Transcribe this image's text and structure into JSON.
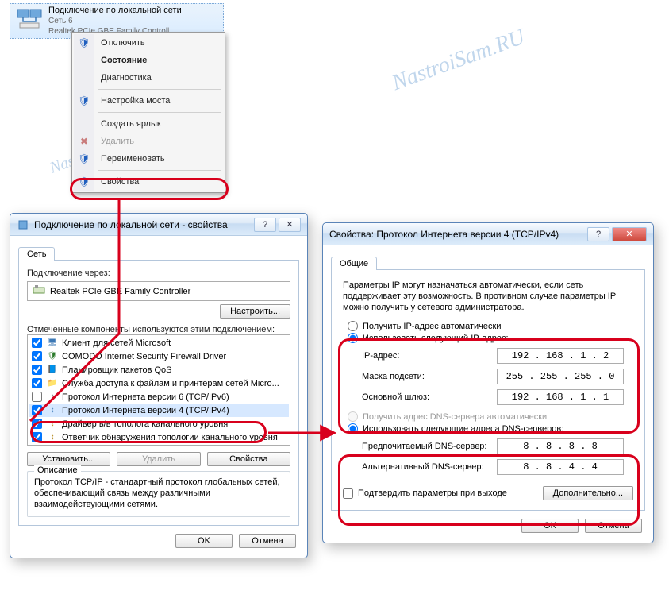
{
  "watermark": {
    "text": "NastroiSam.RU",
    "color": "#b6cfe9",
    "fontsize_large": 28,
    "fontsize_small": 20
  },
  "highlight_color": "#d8001c",
  "net_item": {
    "title": "Подключение по локальной сети",
    "line2": "Сеть 6",
    "line3": "Realtek PCIe GBE Family Controll...",
    "icon_colors": [
      "#6fa8dc",
      "#3b78b5"
    ]
  },
  "ctx_menu": {
    "bg": "#f5f5f5",
    "items": [
      {
        "label": "Отключить",
        "icon": "shield",
        "bold": false
      },
      {
        "label": "Состояние",
        "icon": "",
        "bold": true
      },
      {
        "label": "Диагностика",
        "icon": "",
        "bold": false
      },
      {
        "sep": true
      },
      {
        "label": "Настройка моста",
        "icon": "shield",
        "bold": false
      },
      {
        "sep": true
      },
      {
        "label": "Создать ярлык",
        "icon": "",
        "bold": false
      },
      {
        "label": "Удалить",
        "icon": "del",
        "bold": false,
        "disabled": true
      },
      {
        "label": "Переименовать",
        "icon": "shield",
        "bold": false
      },
      {
        "sep": true
      },
      {
        "label": "Свойства",
        "icon": "shield",
        "bold": false,
        "highlight": true
      }
    ]
  },
  "props_dialog": {
    "title": "Подключение по локальной сети - свойства",
    "tab_label": "Сеть",
    "connect_label": "Подключение через:",
    "adapter": "Realtek PCIe GBE Family Controller",
    "configure_btn": "Настроить...",
    "components_label": "Отмеченные компоненты используются этим подключением:",
    "components": [
      {
        "checked": true,
        "name": "Клиент для сетей Microsoft",
        "ico": "🖥",
        "color": "#3b78b5"
      },
      {
        "checked": true,
        "name": "COMODO Internet Security Firewall Driver",
        "ico": "🛡",
        "color": "#2a7a2a"
      },
      {
        "checked": true,
        "name": "Планировщик пакетов QoS",
        "ico": "📘",
        "color": "#3b78b5"
      },
      {
        "checked": true,
        "name": "Служба доступа к файлам и принтерам сетей Micro...",
        "ico": "📁",
        "color": "#c19a3a"
      },
      {
        "checked": false,
        "name": "Протокол Интернета версии 6 (TCP/IPv6)",
        "ico": "↕",
        "color": "#777"
      },
      {
        "checked": true,
        "name": "Протокол Интернета версии 4 (TCP/IPv4)",
        "ico": "↕",
        "color": "#3b78b5",
        "selected": true,
        "highlight": true
      },
      {
        "checked": true,
        "name": "Драйвер в/в тополога канального уровня",
        "ico": "↕",
        "color": "#aa7a00"
      },
      {
        "checked": true,
        "name": "Ответчик обнаружения топологии канального уровня",
        "ico": "↕",
        "color": "#aa7a00"
      }
    ],
    "install_btn": "Установить...",
    "remove_btn": "Удалить",
    "props_btn": "Свойства",
    "desc_title": "Описание",
    "desc_text": "Протокол TCP/IP - стандартный протокол глобальных сетей, обеспечивающий связь между различными взаимодействующими сетями.",
    "ok_btn": "OK",
    "cancel_btn": "Отмена"
  },
  "ipv4_dialog": {
    "title": "Свойства: Протокол Интернета версии 4 (TCP/IPv4)",
    "tab_label": "Общие",
    "intro": "Параметры IP могут назначаться автоматически, если сеть поддерживает эту возможность. В противном случае параметры IP можно получить у сетевого администратора.",
    "ip_group": {
      "radio_auto": "Получить IP-адрес автоматически",
      "radio_manual": "Использовать следующий IP-адрес:",
      "selected": "manual",
      "rows": [
        {
          "label": "IP-адрес:",
          "value": "192 . 168 .  1  .  2 "
        },
        {
          "label": "Маска подсети:",
          "value": "255 . 255 . 255 .  0 "
        },
        {
          "label": "Основной шлюз:",
          "value": "192 . 168 .  1  .  1 "
        }
      ],
      "highlight": true
    },
    "dns_group": {
      "radio_auto": "Получить адрес DNS-сервера автоматически",
      "radio_auto_disabled": true,
      "radio_manual": "Использовать следующие адреса DNS-серверов:",
      "selected": "manual",
      "rows": [
        {
          "label": "Предпочитаемый DNS-сервер:",
          "value": " 8  .  8  .  8  .  8 "
        },
        {
          "label": "Альтернативный DNS-сервер:",
          "value": " 8  .  8  .  4  .  4 "
        }
      ],
      "highlight": true
    },
    "confirm_check": "Подтвердить параметры при выходе",
    "advanced_btn": "Дополнительно...",
    "ok_btn": "OK",
    "cancel_btn": "Отмена"
  }
}
